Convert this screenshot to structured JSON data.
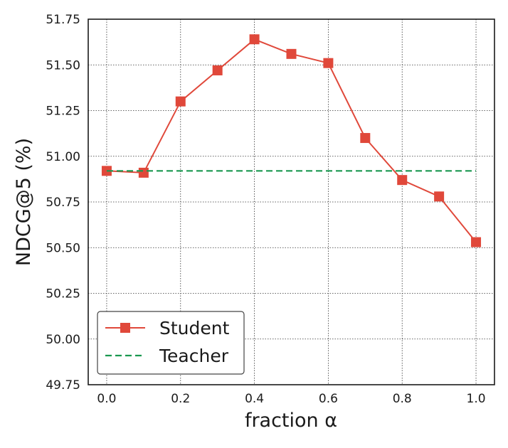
{
  "chart_data": {
    "type": "line",
    "title": "",
    "xlabel": "fraction α",
    "ylabel": "NDCG@5 (%)",
    "xlim": [
      -0.05,
      1.05
    ],
    "ylim": [
      49.75,
      51.75
    ],
    "x_ticks": [
      "0.0",
      "0.2",
      "0.4",
      "0.6",
      "0.8",
      "1.0"
    ],
    "y_ticks": [
      "49.75",
      "50.00",
      "50.25",
      "50.50",
      "50.75",
      "51.00",
      "51.25",
      "51.50",
      "51.75"
    ],
    "grid": true,
    "legend_position": "lower-left",
    "series": [
      {
        "name": "Student",
        "color": "#e0483a",
        "style": "solid",
        "marker": "square",
        "x": [
          0.0,
          0.1,
          0.2,
          0.3,
          0.4,
          0.5,
          0.6,
          0.7,
          0.8,
          0.9,
          1.0
        ],
        "y": [
          50.92,
          50.91,
          51.3,
          51.47,
          51.64,
          51.56,
          51.51,
          51.1,
          50.87,
          50.78,
          50.53
        ]
      },
      {
        "name": "Teacher",
        "color": "#1a9850",
        "style": "dashed",
        "marker": "none",
        "x": [
          0.0,
          1.0
        ],
        "y": [
          50.92,
          50.92
        ]
      }
    ]
  }
}
